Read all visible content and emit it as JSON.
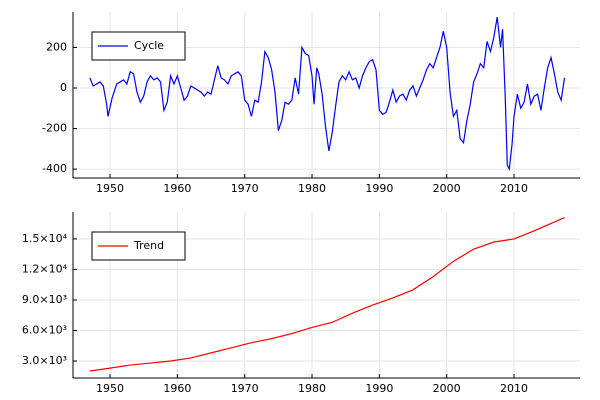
{
  "chart_data": [
    {
      "type": "line",
      "x": [
        1947,
        1947.5,
        1948,
        1948.5,
        1949,
        1949.5,
        1949.7,
        1950.3,
        1951,
        1952,
        1952.5,
        1953,
        1953.5,
        1954,
        1954.5,
        1955,
        1955.5,
        1956,
        1956.5,
        1957,
        1957.5,
        1958,
        1958.5,
        1959,
        1959.5,
        1960,
        1960.5,
        1961,
        1961.5,
        1962,
        1963,
        1963.5,
        1964,
        1964.5,
        1965,
        1965.5,
        1966,
        1966.5,
        1967,
        1967.5,
        1968,
        1968.5,
        1969,
        1969.5,
        1970,
        1970.5,
        1971,
        1971.5,
        1972,
        1972.5,
        1973,
        1973.5,
        1974,
        1974.5,
        1975,
        1975.5,
        1976,
        1976.5,
        1977,
        1977.5,
        1978,
        1978.5,
        1979,
        1979.5,
        1980,
        1980.3,
        1980.7,
        1981,
        1981.5,
        1982,
        1982.5,
        1983,
        1983.5,
        1984,
        1984.5,
        1985,
        1985.5,
        1986,
        1986.5,
        1987,
        1987.5,
        1988,
        1988.5,
        1989,
        1989.5,
        1990,
        1990.5,
        1991,
        1991.5,
        1992,
        1992.5,
        1993,
        1993.5,
        1994,
        1994.5,
        1995,
        1995.5,
        1996,
        1996.5,
        1997,
        1997.5,
        1998,
        1998.5,
        1999,
        1999.5,
        2000,
        2000.5,
        2001,
        2001.5,
        2002,
        2002.5,
        2003,
        2003.5,
        2004,
        2004.5,
        2005,
        2005.5,
        2006,
        2006.5,
        2007,
        2007.5,
        2008,
        2008.3,
        2008.7,
        2009,
        2009.3,
        2009.7,
        2010,
        2010.5,
        2011,
        2011.5,
        2012,
        2012.5,
        2013,
        2013.5,
        2014,
        2014.5,
        2015,
        2015.5,
        2016,
        2016.5,
        2017,
        2017.5
      ],
      "series": [
        {
          "name": "Cycle",
          "color": "#0000ff",
          "values": [
            50,
            10,
            20,
            30,
            10,
            -80,
            -140,
            -50,
            20,
            40,
            20,
            80,
            70,
            -20,
            -70,
            -40,
            30,
            60,
            40,
            50,
            30,
            -110,
            -70,
            60,
            20,
            60,
            0,
            -60,
            -40,
            10,
            -10,
            -20,
            -40,
            -20,
            -30,
            40,
            110,
            50,
            40,
            20,
            60,
            70,
            80,
            60,
            -60,
            -80,
            -140,
            -60,
            -70,
            30,
            180,
            150,
            90,
            -20,
            -210,
            -160,
            -70,
            -80,
            -60,
            50,
            -30,
            200,
            170,
            160,
            60,
            -80,
            100,
            70,
            -30,
            -190,
            -310,
            -220,
            -90,
            30,
            60,
            40,
            80,
            40,
            50,
            0,
            60,
            100,
            130,
            140,
            90,
            -110,
            -130,
            -120,
            -70,
            -10,
            -70,
            -40,
            -30,
            -60,
            -10,
            10,
            -40,
            0,
            40,
            90,
            120,
            100,
            150,
            200,
            280,
            200,
            -20,
            -140,
            -110,
            -250,
            -270,
            -160,
            -80,
            30,
            70,
            120,
            100,
            230,
            180,
            250,
            350,
            200,
            290,
            -50,
            -380,
            -400,
            -280,
            -140,
            -30,
            -100,
            -70,
            20,
            -80,
            -40,
            -30,
            -110,
            0,
            100,
            150,
            70,
            -20,
            -60,
            50
          ]
        }
      ],
      "xlim": [
        1944.5,
        2019.8
      ],
      "xticks": [
        1950,
        1960,
        1970,
        1980,
        1990,
        2000,
        2010
      ],
      "ylim": [
        -444,
        375
      ],
      "yticks": [
        -400,
        -200,
        0,
        200
      ],
      "grid": true,
      "legend": "upper left"
    },
    {
      "type": "line",
      "x": [
        1947,
        1950,
        1953,
        1956,
        1959,
        1962,
        1965,
        1968,
        1971,
        1974,
        1977,
        1980,
        1983,
        1986,
        1989,
        1992,
        1995,
        1998,
        2001,
        2004,
        2007,
        2010,
        2013,
        2017.5
      ],
      "series": [
        {
          "name": "Trend",
          "color": "#ff0000",
          "values": [
            2020,
            2300,
            2600,
            2800,
            3000,
            3300,
            3800,
            4300,
            4800,
            5200,
            5700,
            6300,
            6800,
            7700,
            8500,
            9200,
            10000,
            11300,
            12800,
            14000,
            14700,
            15000,
            15800,
            17100
          ]
        }
      ],
      "xlim": [
        1944.5,
        2019.8
      ],
      "xticks": [
        1950,
        1960,
        1970,
        1980,
        1990,
        2000,
        2010
      ],
      "ylim": [
        1330,
        17650
      ],
      "yticks": [
        {
          "value": 3000,
          "label": "3.0×10³"
        },
        {
          "value": 6000,
          "label": "6.0×10³"
        },
        {
          "value": 9000,
          "label": "9.0×10³"
        },
        {
          "value": 12000,
          "label": "1.2×10⁴"
        },
        {
          "value": 15000,
          "label": "1.5×10⁴"
        }
      ],
      "grid": true,
      "legend": "upper left"
    }
  ]
}
